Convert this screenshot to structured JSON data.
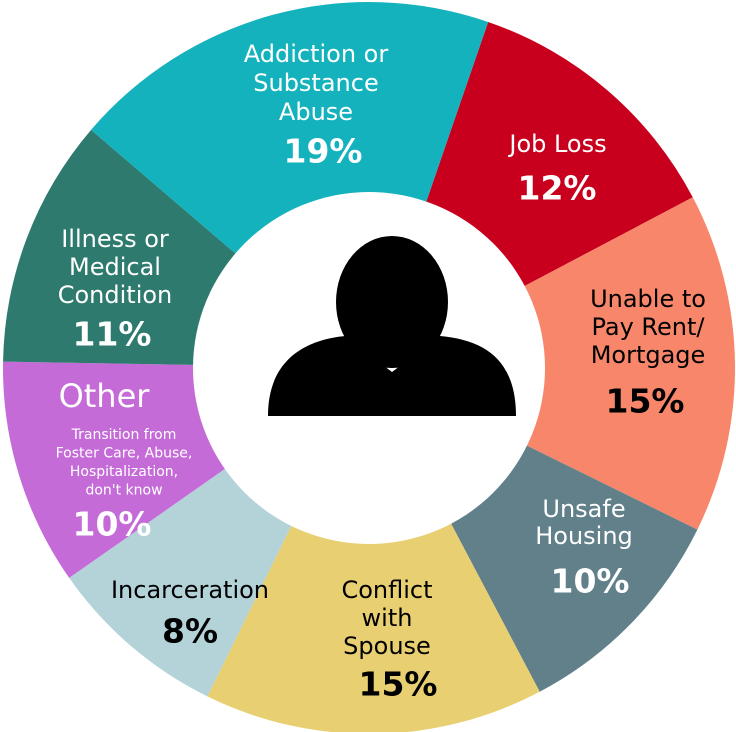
{
  "chart_data": {
    "type": "donut",
    "categories": [
      "Job Loss",
      "Unable to\nPay Rent/\nMortgage",
      "Unsafe\nHousing",
      "Conflict\nwith\nSpouse",
      "Incarceration",
      "Other",
      "Illness or\nMedical\nCondition",
      "Addiction or\nSubstance\nAbuse"
    ],
    "values": [
      12,
      15,
      10,
      15,
      8,
      10,
      11,
      19
    ],
    "value_labels": [
      "12%",
      "15%",
      "10%",
      "15%",
      "8%",
      "10%",
      "11%",
      "19%"
    ],
    "colors": [
      "#c8001e",
      "#f8866a",
      "#61808a",
      "#e8cf72",
      "#b4d3d9",
      "#c56bd8",
      "#2e7a6e",
      "#13b2bc"
    ],
    "label_colors": [
      "#ffffff",
      "#000000",
      "#ffffff",
      "#000000",
      "#000000",
      "#ffffff",
      "#ffffff",
      "#ffffff"
    ],
    "annotation": "Transition from\nFoster Care, Abuse,\nHospitalization,\ndon't know"
  }
}
